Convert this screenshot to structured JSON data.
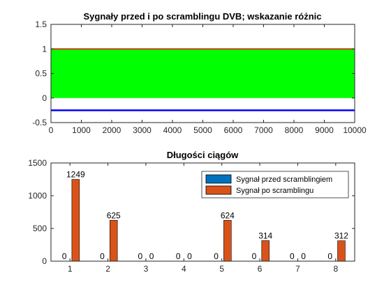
{
  "colors": {
    "axes": "#262626",
    "series_before": "#0072BD",
    "series_after": "#D95319",
    "line_before": "#0000FF",
    "after_band": "#00FF00",
    "after_top": "#FF0000",
    "background": "#FFFFFF"
  },
  "chart_data": [
    {
      "type": "line",
      "title": "Sygnały przed i po scramblingu DVB; wskazanie różnic",
      "xlabel": "",
      "ylabel": "",
      "xlim": [
        0,
        10000
      ],
      "ylim": [
        -0.5,
        1.5
      ],
      "x_ticks": [
        "0",
        "1000",
        "2000",
        "3000",
        "4000",
        "5000",
        "6000",
        "7000",
        "8000",
        "9000",
        "10000"
      ],
      "y_ticks": [
        "-0.5",
        "0",
        "0.5",
        "1",
        "1.5"
      ],
      "grid": false,
      "series": [
        {
          "style": "binary sequence alternating between 0 and 1 (dense, rendered as solid band)",
          "color": "#00FF00",
          "x_range": [
            0,
            10000
          ],
          "min": 0,
          "max": 1
        },
        {
          "style": "upper envelope line",
          "color": "#FF0000",
          "x_range": [
            0,
            10000
          ],
          "y": 1
        },
        {
          "style": "constant line",
          "color": "#0000FF",
          "x_range": [
            0,
            10000
          ],
          "y": -0.25
        }
      ]
    },
    {
      "type": "bar",
      "title": "Długości ciągów",
      "xlabel": "",
      "ylabel": "",
      "categories": [
        "1",
        "2",
        "3",
        "4",
        "5",
        "6",
        "7",
        "8"
      ],
      "ylim": [
        0,
        1500
      ],
      "y_ticks": [
        "0",
        "500",
        "1000",
        "1500"
      ],
      "grid": false,
      "legend_position": "top-right",
      "series": [
        {
          "name": "Sygnał przed scramblingiem",
          "color": "#0072BD",
          "values": [
            0,
            0,
            0,
            0,
            0,
            0,
            0,
            0
          ]
        },
        {
          "name": "Sygnał po scramblingu",
          "color": "#D95319",
          "values": [
            1249,
            625,
            0,
            0,
            624,
            314,
            0,
            312
          ]
        }
      ]
    }
  ]
}
